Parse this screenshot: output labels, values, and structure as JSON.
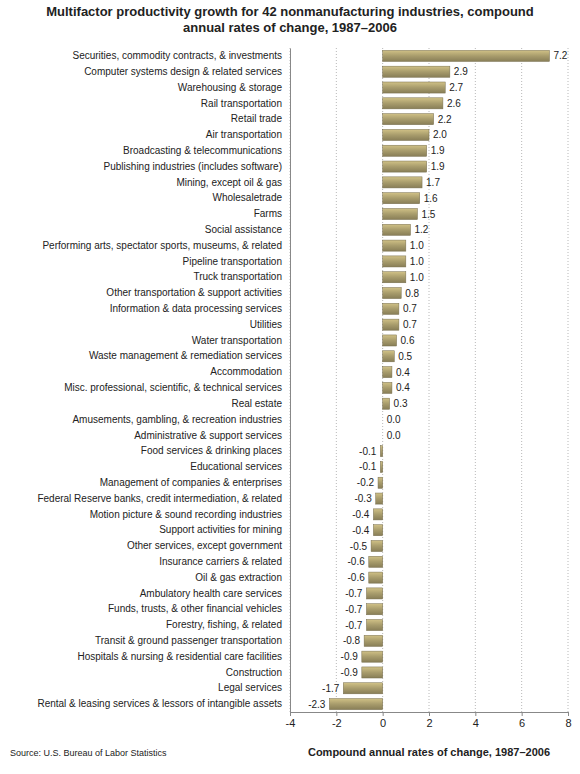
{
  "chart_data": {
    "type": "bar",
    "orientation": "horizontal",
    "title": "Multifactor productivity growth for 42 nonmanufacturing industries, compound annual rates of change, 1987–2006",
    "x_label": "Compound annual rates of change, 1987–2006",
    "source": "Source: U.S. Bureau of Labor Statistics",
    "categories": [
      "Securities, commodity contracts, & investments",
      "Computer systems design & related services",
      "Warehousing & storage",
      "Rail transportation",
      "Retail trade",
      "Air transportation",
      "Broadcasting & telecommunications",
      "Publishing industries (includes software)",
      "Mining, except oil & gas",
      "Wholesaletrade",
      "Farms",
      "Social assistance",
      "Performing arts, spectator sports, museums, & related",
      "Pipeline transportation",
      "Truck transportation",
      "Other transportation & support activities",
      "Information & data processing services",
      "Utilities",
      "Water transportation",
      "Waste management & remediation services",
      "Accommodation",
      "Misc. professional, scientific, & technical services",
      "Real estate",
      "Amusements, gambling, & recreation industries",
      "Administrative & support services",
      "Food services & drinking places",
      "Educational services",
      "Management of companies & enterprises",
      "Federal Reserve banks, credit intermediation, & related",
      "Motion picture & sound recording industries",
      "Support activities for mining",
      "Other services, except government",
      "Insurance carriers & related",
      "Oil & gas extraction",
      "Ambulatory health care services",
      "Funds, trusts, & other financial vehicles",
      "Forestry, fishing, & related",
      "Transit & ground passenger transportation",
      "Hospitals & nursing & residential care facilities",
      "Construction",
      "Legal services",
      "Rental & leasing services & lessors of intangible assets"
    ],
    "values": [
      7.2,
      2.9,
      2.7,
      2.6,
      2.2,
      2.0,
      1.9,
      1.9,
      1.7,
      1.6,
      1.5,
      1.2,
      1.0,
      1.0,
      1.0,
      0.8,
      0.7,
      0.7,
      0.6,
      0.5,
      0.4,
      0.4,
      0.3,
      0.0,
      0.0,
      -0.1,
      -0.1,
      -0.2,
      -0.3,
      -0.4,
      -0.4,
      -0.5,
      -0.6,
      -0.6,
      -0.7,
      -0.7,
      -0.7,
      -0.8,
      -0.9,
      -0.9,
      -1.7,
      -2.3
    ],
    "value_labels": [
      "7.2",
      "2.9",
      "2.7",
      "2.6",
      "2.2",
      "2.0",
      "1.9",
      "1.9",
      "1.7",
      "1.6",
      "1.5",
      "1.2",
      "1.0",
      "1.0",
      "1.0",
      "0.8",
      "0.7",
      "0.7",
      "0.6",
      "0.5",
      "0.4",
      "0.4",
      "0.3",
      "0.0",
      "0.0",
      "-0.1",
      "-0.1",
      "-0.2",
      "-0.3",
      "-0.4",
      "-0.4",
      "-0.5",
      "-0.6",
      "-0.6",
      "-0.7",
      "-0.7",
      "-0.7",
      "-0.8",
      "-0.9",
      "-0.9",
      "-1.7",
      "-2.3"
    ],
    "data_labels": true,
    "color": "#a89c6c",
    "xlim": [
      -4,
      8
    ],
    "xticks": [
      -4,
      -2,
      0,
      2,
      4,
      6,
      8
    ],
    "grid": true
  }
}
